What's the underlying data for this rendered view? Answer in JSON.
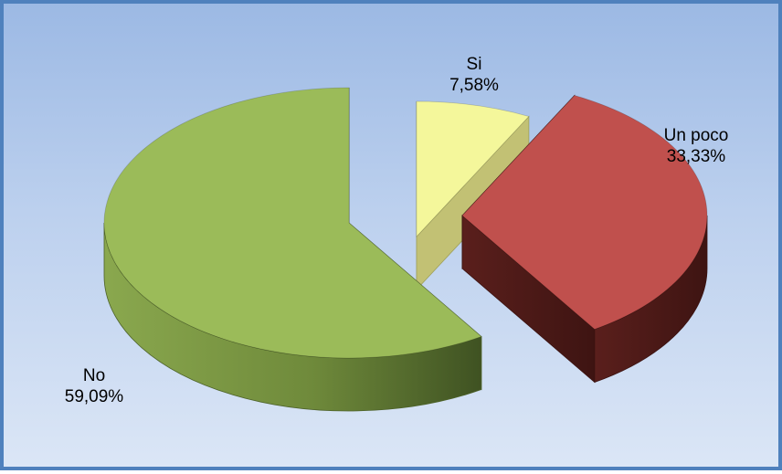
{
  "chart_data": {
    "type": "pie",
    "style": "3d-exploded",
    "labels": [
      "Si",
      "Un poco",
      "No"
    ],
    "values": [
      7.58,
      33.33,
      59.09
    ],
    "value_labels": [
      "7,58%",
      "33,33%",
      "59,09%"
    ],
    "colors": [
      "#f4f79b",
      "#c0504d",
      "#9bbb59"
    ],
    "legend": "none"
  }
}
